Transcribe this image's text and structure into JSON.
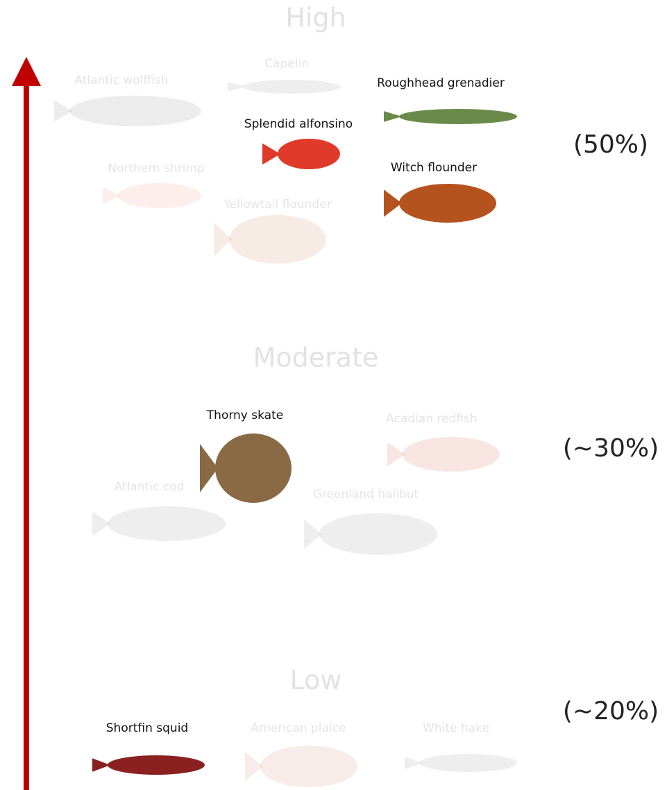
{
  "levels": [
    {
      "label": "High",
      "share": "(50%)",
      "species": [
        {
          "name": "Atlantic wolffish",
          "highlighted": false
        },
        {
          "name": "Capelin",
          "highlighted": false
        },
        {
          "name": "Roughhead grenadier",
          "highlighted": true
        },
        {
          "name": "Splendid alfonsino",
          "highlighted": true
        },
        {
          "name": "Witch flounder",
          "highlighted": true
        },
        {
          "name": "Northern shrimp",
          "highlighted": false
        },
        {
          "name": "Yellowtail flounder",
          "highlighted": false
        }
      ]
    },
    {
      "label": "Moderate",
      "share": "(~30%)",
      "species": [
        {
          "name": "Thorny skate",
          "highlighted": true
        },
        {
          "name": "Acadian redfish",
          "highlighted": false
        },
        {
          "name": "Atlantic cod",
          "highlighted": false
        },
        {
          "name": "Greenland halibut",
          "highlighted": false
        }
      ]
    },
    {
      "label": "Low",
      "share": "(~20%)",
      "species": [
        {
          "name": "Shortfin squid",
          "highlighted": true
        },
        {
          "name": "American plaice",
          "highlighted": false
        },
        {
          "name": "White hake",
          "highlighted": false
        }
      ]
    }
  ]
}
